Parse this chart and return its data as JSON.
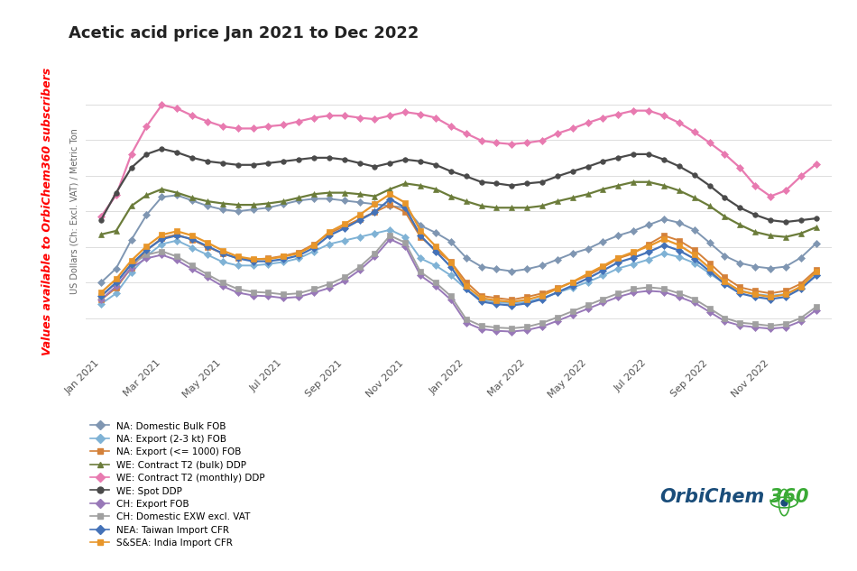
{
  "title": "Acetic acid price Jan 2021 to Dec 2022",
  "ylabel": "US Dollars (Ch: Excl. VAT) / Metric Ton",
  "watermark": "Values available to OrbiChem360 subscribers",
  "background_color": "#ffffff",
  "series": [
    {
      "label": "NA: Domestic Bulk FOB",
      "color": "#7f96b2",
      "marker": "D",
      "linewidth": 1.4,
      "markersize": 4,
      "values": [
        300,
        340,
        420,
        490,
        540,
        545,
        530,
        515,
        505,
        500,
        505,
        510,
        520,
        530,
        535,
        535,
        530,
        525,
        520,
        515,
        510,
        460,
        440,
        415,
        370,
        345,
        338,
        332,
        338,
        348,
        365,
        382,
        395,
        415,
        432,
        445,
        462,
        478,
        468,
        448,
        412,
        375,
        355,
        345,
        340,
        345,
        370,
        410
      ]
    },
    {
      "label": "NA: Export (2-3 kt) FOB",
      "color": "#7fb2d5",
      "marker": "D",
      "linewidth": 1.4,
      "markersize": 4,
      "values": [
        240,
        270,
        328,
        375,
        408,
        418,
        398,
        378,
        358,
        348,
        348,
        352,
        358,
        368,
        388,
        408,
        418,
        428,
        438,
        448,
        428,
        368,
        348,
        320,
        282,
        252,
        246,
        242,
        246,
        257,
        272,
        286,
        302,
        320,
        340,
        352,
        365,
        382,
        372,
        355,
        326,
        297,
        278,
        268,
        263,
        268,
        286,
        320
      ]
    },
    {
      "label": "NA: Export (<= 1000) FOB",
      "color": "#d4813a",
      "marker": "s",
      "linewidth": 1.4,
      "markersize": 4,
      "values": [
        252,
        285,
        342,
        390,
        425,
        435,
        420,
        400,
        382,
        368,
        365,
        368,
        375,
        385,
        408,
        438,
        458,
        478,
        498,
        518,
        498,
        428,
        392,
        358,
        302,
        263,
        257,
        252,
        260,
        270,
        285,
        302,
        320,
        343,
        368,
        382,
        408,
        432,
        418,
        392,
        355,
        315,
        287,
        277,
        270,
        277,
        297,
        335
      ]
    },
    {
      "label": "WE: Contract T2 (bulk) DDP",
      "color": "#6b7c3a",
      "marker": "^",
      "linewidth": 1.6,
      "markersize": 5,
      "values": [
        435,
        445,
        515,
        545,
        562,
        552,
        538,
        528,
        522,
        518,
        518,
        522,
        528,
        538,
        548,
        552,
        552,
        548,
        542,
        562,
        578,
        572,
        562,
        542,
        528,
        515,
        510,
        510,
        510,
        515,
        528,
        538,
        548,
        562,
        572,
        582,
        582,
        572,
        558,
        538,
        515,
        485,
        462,
        442,
        432,
        428,
        438,
        455
      ]
    },
    {
      "label": "WE: Contract T2 (monthly) DDP",
      "color": "#e87ab0",
      "marker": "D",
      "linewidth": 1.6,
      "markersize": 4,
      "values": [
        485,
        545,
        660,
        738,
        798,
        788,
        768,
        752,
        738,
        732,
        732,
        738,
        742,
        752,
        762,
        768,
        768,
        762,
        758,
        768,
        778,
        772,
        762,
        738,
        718,
        698,
        692,
        688,
        692,
        698,
        718,
        732,
        748,
        762,
        772,
        782,
        782,
        768,
        748,
        722,
        692,
        660,
        622,
        572,
        542,
        558,
        598,
        632
      ]
    },
    {
      "label": "WE: Spot DDP",
      "color": "#4a4a4a",
      "marker": "o",
      "linewidth": 1.6,
      "markersize": 4,
      "values": [
        475,
        552,
        622,
        660,
        675,
        665,
        650,
        640,
        635,
        630,
        630,
        635,
        640,
        645,
        650,
        650,
        645,
        635,
        625,
        635,
        645,
        640,
        630,
        612,
        598,
        582,
        578,
        572,
        578,
        582,
        598,
        612,
        625,
        640,
        650,
        660,
        660,
        645,
        626,
        602,
        572,
        538,
        510,
        490,
        475,
        470,
        475,
        480
      ]
    },
    {
      "label": "CH: Export FOB",
      "color": "#9878b8",
      "marker": "D",
      "linewidth": 1.4,
      "markersize": 4,
      "values": [
        252,
        290,
        342,
        368,
        378,
        363,
        338,
        315,
        290,
        272,
        264,
        262,
        257,
        260,
        272,
        285,
        305,
        335,
        373,
        422,
        402,
        320,
        290,
        252,
        188,
        170,
        165,
        163,
        167,
        177,
        193,
        210,
        227,
        244,
        260,
        272,
        277,
        274,
        260,
        244,
        218,
        192,
        180,
        175,
        171,
        175,
        192,
        223
      ]
    },
    {
      "label": "CH: Domestic EXW excl. VAT",
      "color": "#a0a0a0",
      "marker": "s",
      "linewidth": 1.4,
      "markersize": 4,
      "values": [
        262,
        300,
        352,
        378,
        388,
        373,
        348,
        323,
        300,
        282,
        274,
        272,
        267,
        270,
        282,
        296,
        315,
        344,
        382,
        432,
        412,
        330,
        300,
        262,
        198,
        179,
        174,
        172,
        176,
        187,
        203,
        220,
        237,
        254,
        270,
        282,
        287,
        283,
        270,
        254,
        228,
        201,
        188,
        184,
        179,
        184,
        201,
        232
      ]
    },
    {
      "label": "NEA: Taiwan Import CFR",
      "color": "#4472b8",
      "marker": "D",
      "linewidth": 1.6,
      "markersize": 4,
      "values": [
        262,
        300,
        352,
        392,
        422,
        432,
        422,
        402,
        382,
        368,
        360,
        360,
        366,
        376,
        398,
        432,
        452,
        475,
        498,
        534,
        510,
        432,
        388,
        344,
        282,
        247,
        240,
        236,
        242,
        254,
        273,
        292,
        312,
        334,
        357,
        370,
        386,
        405,
        390,
        367,
        332,
        296,
        270,
        260,
        254,
        260,
        283,
        320
      ]
    },
    {
      "label": "S&SEA: India Import CFR",
      "color": "#e8962a",
      "marker": "s",
      "linewidth": 1.6,
      "markersize": 4,
      "values": [
        272,
        310,
        362,
        402,
        434,
        444,
        432,
        412,
        390,
        373,
        366,
        366,
        373,
        382,
        405,
        442,
        464,
        490,
        520,
        548,
        524,
        446,
        402,
        357,
        291,
        257,
        250,
        246,
        252,
        264,
        283,
        302,
        325,
        347,
        370,
        386,
        402,
        422,
        405,
        378,
        341,
        303,
        277,
        267,
        260,
        267,
        289,
        330
      ]
    }
  ],
  "x_tick_labels": [
    "Jan 2021",
    "Mar 2021",
    "May 2021",
    "Jul 2021",
    "Sep 2021",
    "Nov 2021",
    "Jan 2022",
    "Mar 2022",
    "May 2022",
    "Jul 2022",
    "Sep 2022",
    "Nov 2022"
  ],
  "tick_positions": [
    0,
    4,
    8,
    12,
    16,
    20,
    24,
    28,
    32,
    36,
    40,
    44
  ],
  "ylim": [
    100,
    900
  ],
  "n_points": 48,
  "orbichem_text1": "OrbiChem",
  "orbichem_text2": "360",
  "orbichem_color1": "#1a4d7a",
  "orbichem_color2": "#3aaa35"
}
